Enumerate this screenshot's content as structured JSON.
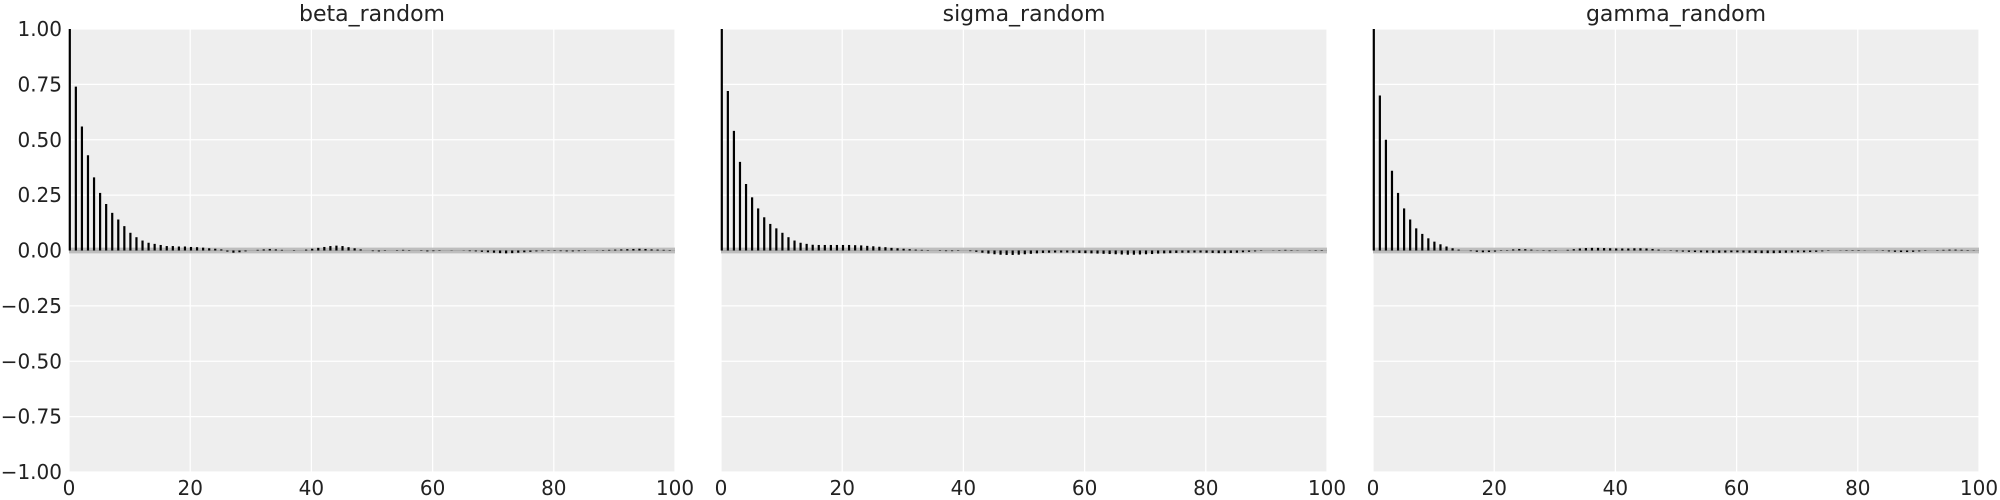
{
  "chart_data": [
    {
      "type": "bar",
      "title": "beta_random",
      "xlabel": "",
      "ylabel": "",
      "xlim": [
        0,
        100
      ],
      "ylim": [
        -1.0,
        1.0
      ],
      "grid": true,
      "x_ticks": [
        "0",
        "20",
        "40",
        "60",
        "80",
        "100"
      ],
      "y_ticks": [
        "1.00",
        "0.75",
        "0.50",
        "0.25",
        "0.00",
        "−0.25",
        "−0.50",
        "−0.75",
        "−1.00"
      ],
      "x": [
        0,
        1,
        2,
        3,
        4,
        5,
        6,
        7,
        8,
        9,
        10,
        11,
        12,
        13,
        14,
        15,
        16,
        17,
        18,
        19,
        20,
        21,
        22,
        23,
        24,
        25,
        26,
        27,
        28,
        29,
        30,
        31,
        32,
        33,
        34,
        35,
        36,
        37,
        38,
        39,
        40,
        41,
        42,
        43,
        44,
        45,
        46,
        47,
        48,
        49,
        50,
        51,
        52,
        53,
        54,
        55,
        56,
        57,
        58,
        59,
        60,
        61,
        62,
        63,
        64,
        65,
        66,
        67,
        68,
        69,
        70,
        71,
        72,
        73,
        74,
        75,
        76,
        77,
        78,
        79,
        80,
        81,
        82,
        83,
        84,
        85,
        86,
        87,
        88,
        89,
        90,
        91,
        92,
        93,
        94,
        95,
        96,
        97,
        98,
        99
      ],
      "values": [
        1.0,
        0.74,
        0.56,
        0.43,
        0.33,
        0.26,
        0.21,
        0.17,
        0.14,
        0.11,
        0.08,
        0.06,
        0.045,
        0.035,
        0.03,
        0.025,
        0.02,
        0.02,
        0.018,
        0.018,
        0.016,
        0.015,
        0.013,
        0.01,
        0.008,
        0.005,
        -0.005,
        -0.01,
        -0.008,
        -0.004,
        0.0,
        0.003,
        0.005,
        0.007,
        0.005,
        0.003,
        0.0,
        -0.002,
        0.0,
        0.004,
        0.008,
        0.012,
        0.016,
        0.02,
        0.022,
        0.02,
        0.015,
        0.01,
        0.005,
        0.0,
        -0.003,
        -0.004,
        -0.002,
        0.0,
        0.002,
        0.003,
        0.002,
        0.0,
        -0.002,
        -0.004,
        -0.003,
        -0.002,
        0.0,
        0.001,
        0.0,
        -0.001,
        -0.003,
        -0.004,
        -0.006,
        -0.008,
        -0.01,
        -0.012,
        -0.013,
        -0.012,
        -0.01,
        -0.008,
        -0.006,
        -0.004,
        -0.003,
        -0.002,
        -0.002,
        -0.003,
        -0.004,
        -0.004,
        -0.003,
        -0.002,
        0.0,
        0.001,
        0.002,
        0.003,
        0.004,
        0.005,
        0.006,
        0.007,
        0.008,
        0.007,
        0.005,
        0.004,
        0.003,
        0.002
      ]
    },
    {
      "type": "bar",
      "title": "sigma_random",
      "xlabel": "",
      "ylabel": "",
      "xlim": [
        0,
        100
      ],
      "ylim": [
        -1.0,
        1.0
      ],
      "grid": true,
      "x_ticks": [
        "0",
        "20",
        "40",
        "60",
        "80",
        "100"
      ],
      "x": [
        0,
        1,
        2,
        3,
        4,
        5,
        6,
        7,
        8,
        9,
        10,
        11,
        12,
        13,
        14,
        15,
        16,
        17,
        18,
        19,
        20,
        21,
        22,
        23,
        24,
        25,
        26,
        27,
        28,
        29,
        30,
        31,
        32,
        33,
        34,
        35,
        36,
        37,
        38,
        39,
        40,
        41,
        42,
        43,
        44,
        45,
        46,
        47,
        48,
        49,
        50,
        51,
        52,
        53,
        54,
        55,
        56,
        57,
        58,
        59,
        60,
        61,
        62,
        63,
        64,
        65,
        66,
        67,
        68,
        69,
        70,
        71,
        72,
        73,
        74,
        75,
        76,
        77,
        78,
        79,
        80,
        81,
        82,
        83,
        84,
        85,
        86,
        87,
        88,
        89,
        90,
        91,
        92,
        93,
        94,
        95,
        96,
        97,
        98,
        99
      ],
      "values": [
        1.0,
        0.72,
        0.54,
        0.4,
        0.3,
        0.24,
        0.19,
        0.15,
        0.12,
        0.1,
        0.08,
        0.06,
        0.045,
        0.035,
        0.03,
        0.026,
        0.025,
        0.025,
        0.025,
        0.025,
        0.025,
        0.025,
        0.024,
        0.023,
        0.021,
        0.019,
        0.017,
        0.015,
        0.012,
        0.01,
        0.008,
        0.006,
        0.004,
        0.003,
        0.002,
        0.0,
        -0.002,
        -0.003,
        -0.003,
        -0.002,
        0.0,
        -0.003,
        -0.006,
        -0.01,
        -0.014,
        -0.017,
        -0.019,
        -0.02,
        -0.02,
        -0.019,
        -0.017,
        -0.015,
        -0.013,
        -0.011,
        -0.01,
        -0.009,
        -0.009,
        -0.009,
        -0.01,
        -0.011,
        -0.012,
        -0.013,
        -0.014,
        -0.015,
        -0.016,
        -0.017,
        -0.018,
        -0.019,
        -0.019,
        -0.018,
        -0.017,
        -0.016,
        -0.014,
        -0.013,
        -0.012,
        -0.011,
        -0.01,
        -0.01,
        -0.009,
        -0.009,
        -0.01,
        -0.011,
        -0.012,
        -0.012,
        -0.011,
        -0.01,
        -0.008,
        -0.006,
        -0.004,
        -0.002,
        0.0,
        0.001,
        0.002,
        0.003,
        0.002,
        0.001,
        0.0,
        -0.001,
        -0.002,
        -0.002
      ]
    },
    {
      "type": "bar",
      "title": "gamma_random",
      "xlabel": "",
      "ylabel": "",
      "xlim": [
        0,
        100
      ],
      "ylim": [
        -1.0,
        1.0
      ],
      "grid": true,
      "x_ticks": [
        "0",
        "20",
        "40",
        "60",
        "80",
        "100"
      ],
      "x": [
        0,
        1,
        2,
        3,
        4,
        5,
        6,
        7,
        8,
        9,
        10,
        11,
        12,
        13,
        14,
        15,
        16,
        17,
        18,
        19,
        20,
        21,
        22,
        23,
        24,
        25,
        26,
        27,
        28,
        29,
        30,
        31,
        32,
        33,
        34,
        35,
        36,
        37,
        38,
        39,
        40,
        41,
        42,
        43,
        44,
        45,
        46,
        47,
        48,
        49,
        50,
        51,
        52,
        53,
        54,
        55,
        56,
        57,
        58,
        59,
        60,
        61,
        62,
        63,
        64,
        65,
        66,
        67,
        68,
        69,
        70,
        71,
        72,
        73,
        74,
        75,
        76,
        77,
        78,
        79,
        80,
        81,
        82,
        83,
        84,
        85,
        86,
        87,
        88,
        89,
        90,
        91,
        92,
        93,
        94,
        95,
        96,
        97,
        98,
        99
      ],
      "values": [
        1.0,
        0.7,
        0.5,
        0.36,
        0.26,
        0.19,
        0.14,
        0.1,
        0.075,
        0.055,
        0.04,
        0.028,
        0.018,
        0.01,
        0.004,
        0.0,
        -0.003,
        -0.006,
        -0.008,
        -0.007,
        -0.005,
        -0.002,
        0.002,
        0.005,
        0.007,
        0.006,
        0.004,
        0.001,
        -0.002,
        -0.003,
        -0.002,
        0.0,
        0.003,
        0.006,
        0.009,
        0.011,
        0.012,
        0.012,
        0.011,
        0.01,
        0.009,
        0.009,
        0.009,
        0.01,
        0.01,
        0.009,
        0.007,
        0.004,
        0.001,
        -0.002,
        -0.004,
        -0.005,
        -0.006,
        -0.007,
        -0.008,
        -0.009,
        -0.01,
        -0.01,
        -0.009,
        -0.008,
        -0.008,
        -0.009,
        -0.01,
        -0.011,
        -0.012,
        -0.012,
        -0.012,
        -0.011,
        -0.01,
        -0.009,
        -0.008,
        -0.008,
        -0.007,
        -0.006,
        -0.004,
        -0.002,
        0.0,
        0.001,
        0.002,
        0.002,
        0.002,
        0.001,
        0.0,
        -0.001,
        -0.002,
        -0.004,
        -0.006,
        -0.007,
        -0.007,
        -0.006,
        -0.004,
        -0.002,
        0.0,
        0.002,
        0.003,
        0.004,
        0.004,
        0.003,
        0.002,
        0.001
      ]
    }
  ]
}
